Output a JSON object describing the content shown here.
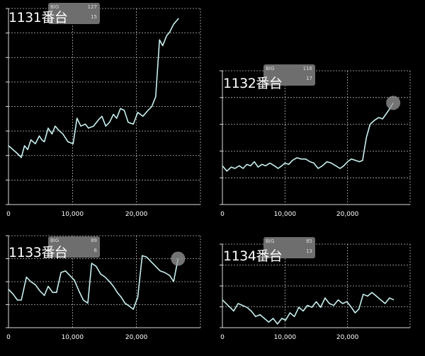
{
  "colors": {
    "background": "#000000",
    "line": "#c8f0f0",
    "grid": "#bbbbbb",
    "badge": "#6e6e6e"
  },
  "chart_data": [
    {
      "type": "line",
      "title": "1131番台",
      "badge": {
        "label": "BIG",
        "big": "127",
        "reg": "15"
      },
      "xticks": [
        "0",
        "10,000",
        "20,000"
      ],
      "xlim": [
        0,
        30000
      ],
      "ylim": [
        -4000,
        6000
      ],
      "x": [
        0,
        700,
        1400,
        2000,
        2500,
        3000,
        3500,
        4200,
        4800,
        5200,
        5600,
        6200,
        6800,
        7300,
        7800,
        8500,
        9300,
        10100,
        10700,
        11300,
        12000,
        12500,
        13300,
        14000,
        14600,
        15200,
        15800,
        16400,
        16900,
        17500,
        18100,
        18700,
        19500,
        20200,
        21000,
        21800,
        22400,
        23000,
        23600,
        24100,
        24700,
        25200,
        25800,
        26600
      ],
      "y": [
        -1000,
        -1200,
        -1400,
        -1600,
        -1000,
        -1200,
        -700,
        -900,
        -500,
        -700,
        -800,
        -100,
        -400,
        0,
        -200,
        -400,
        -800,
        -900,
        400,
        0,
        100,
        -100,
        0,
        300,
        500,
        0,
        200,
        600,
        400,
        900,
        800,
        200,
        100,
        700,
        500,
        800,
        1000,
        1500,
        4400,
        4100,
        4600,
        4800,
        5200,
        5500
      ],
      "mark": false
    },
    {
      "type": "line",
      "title": "1132番台",
      "badge": {
        "label": "BIG",
        "big": "116",
        "reg": "17"
      },
      "xticks": [
        "0",
        "10,000",
        "20,000"
      ],
      "xlim": [
        0,
        30000
      ],
      "ylim": [
        -3000,
        7000
      ],
      "x": [
        0,
        700,
        1400,
        2000,
        2700,
        3300,
        3900,
        4500,
        5100,
        5700,
        6300,
        6900,
        7600,
        8300,
        8900,
        9500,
        10000,
        10600,
        11200,
        11900,
        12600,
        13300,
        14000,
        14600,
        15300,
        16000,
        16700,
        17400,
        18100,
        18800,
        19400,
        20000,
        20600,
        21300,
        21900,
        22400,
        23000,
        23600,
        24300,
        25000,
        25600,
        26200,
        26800,
        27300
      ],
      "y": [
        -100,
        -500,
        -200,
        -300,
        -100,
        -300,
        0,
        -100,
        200,
        -200,
        0,
        -100,
        100,
        -100,
        -300,
        -100,
        100,
        0,
        300,
        500,
        400,
        400,
        200,
        100,
        -300,
        -100,
        200,
        100,
        -100,
        -300,
        -100,
        200,
        400,
        300,
        200,
        300,
        2000,
        3000,
        3300,
        3500,
        3400,
        3800,
        4200,
        4600
      ],
      "mark": true
    },
    {
      "type": "line",
      "title": "1133番台",
      "badge": {
        "label": "BIG",
        "big": "89",
        "reg": "6"
      },
      "xticks": [
        "0",
        "10,000",
        "20,000"
      ],
      "xlim": [
        0,
        30000
      ],
      "ylim": [
        -3000,
        3000
      ],
      "x": [
        0,
        700,
        1400,
        2000,
        2800,
        3500,
        4200,
        4900,
        5600,
        6200,
        6900,
        7500,
        8200,
        8900,
        9600,
        10300,
        11000,
        11700,
        12400,
        13000,
        13700,
        14400,
        15100,
        15800,
        16400,
        17000,
        17600,
        18200,
        18900,
        19500,
        20200,
        20900,
        21600,
        22300,
        23000,
        23700,
        24400,
        25200,
        25800,
        26500
      ],
      "y": [
        -500,
        -800,
        -1200,
        -1200,
        300,
        0,
        -200,
        -600,
        -900,
        -300,
        -700,
        -700,
        600,
        700,
        400,
        100,
        -600,
        -1200,
        -1400,
        1200,
        1000,
        500,
        300,
        0,
        -300,
        -700,
        -1000,
        -1400,
        -1600,
        -1800,
        -1000,
        1700,
        1600,
        1300,
        1000,
        700,
        600,
        400,
        0,
        1500
      ],
      "mark": true
    },
    {
      "type": "line",
      "title": "1134番台",
      "badge": {
        "label": "BIG",
        "big": "85",
        "reg": "13"
      },
      "xticks": [
        "0",
        "10,000",
        "20,000"
      ],
      "xlim": [
        0,
        30000
      ],
      "ylim": [
        -1500,
        3000
      ],
      "x": [
        0,
        600,
        1200,
        1800,
        2500,
        3200,
        3900,
        4600,
        5300,
        6000,
        6700,
        7400,
        8100,
        8800,
        9500,
        10100,
        10800,
        11500,
        12200,
        12900,
        13600,
        14300,
        15000,
        15700,
        16400,
        17100,
        17800,
        18500,
        19200,
        19900,
        20600,
        21200,
        21800,
        22500,
        23200,
        23900,
        24600,
        25300,
        26000,
        26700,
        27400
      ],
      "y": [
        0,
        -200,
        -400,
        -600,
        -200,
        -300,
        -400,
        -600,
        -900,
        -800,
        -1000,
        -1200,
        -1000,
        -1300,
        -1000,
        -1100,
        -700,
        -900,
        -400,
        -600,
        -300,
        -400,
        -100,
        -400,
        100,
        -200,
        -300,
        0,
        -200,
        -100,
        -400,
        -700,
        -500,
        300,
        200,
        400,
        200,
        0,
        -200,
        100,
        0
      ]
    }
  ]
}
